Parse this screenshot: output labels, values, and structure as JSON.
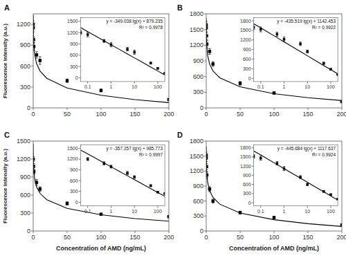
{
  "chart_data": [
    {
      "type": "scatter",
      "title": "A",
      "ylabel": "Fluorescence Intensity (a.u.)",
      "xlim": [
        0,
        200
      ],
      "xticks": [
        0,
        50,
        100,
        150,
        200
      ],
      "ylim": [
        0,
        1350
      ],
      "yticks": [
        0,
        300,
        600,
        900,
        1200
      ],
      "grid": false,
      "annotations": [
        "y = -349.038 lg(x) + 879.235",
        "R² = 0.9978"
      ],
      "inset": {
        "log": "x",
        "xlim": [
          0.05,
          200
        ],
        "xticks": [
          0.1,
          1,
          10,
          100
        ],
        "ylim": [
          -100,
          1600
        ],
        "yticks": [
          0,
          300,
          600,
          900,
          1200,
          1500
        ]
      },
      "series": [
        {
          "type": "line",
          "color": "black",
          "x": [
            0.05,
            0.1,
            0.5,
            1,
            2,
            5,
            10,
            20,
            50,
            100,
            150,
            200
          ],
          "values": [
            1333.3,
            1228.3,
            984.3,
            879.2,
            774.2,
            635.3,
            530.2,
            425.1,
            286.2,
            181.2,
            119.7,
            76.1
          ]
        },
        {
          "type": "scatter",
          "color": "black",
          "marker": "square",
          "x": [
            0.05,
            0.1,
            0.5,
            1,
            5,
            10,
            50,
            100,
            200
          ],
          "values": [
            1200,
            1150,
            980,
            880,
            760,
            680,
            390,
            250,
            120
          ],
          "errors": [
            50,
            60,
            40,
            55,
            45,
            55,
            25,
            20,
            12
          ]
        }
      ]
    },
    {
      "type": "scatter",
      "title": "B",
      "xlim": [
        0,
        200
      ],
      "xticks": [
        0,
        50,
        100,
        150,
        200
      ],
      "ylim": [
        0,
        1800
      ],
      "yticks": [
        0,
        300,
        600,
        900,
        1200,
        1500,
        1800
      ],
      "grid": false,
      "annotations": [
        "y = -435.519 lg(x) + 1142.453",
        "R² = 0.9922"
      ],
      "inset": {
        "log": "x",
        "xlim": [
          0.05,
          200
        ],
        "xticks": [
          0.1,
          1,
          10,
          100
        ],
        "ylim": [
          -100,
          1900
        ],
        "yticks": [
          0,
          300,
          600,
          900,
          1200,
          1500,
          1800
        ]
      },
      "series": [
        {
          "type": "line",
          "color": "black",
          "x": [
            0.05,
            0.1,
            0.5,
            1,
            2,
            5,
            10,
            20,
            50,
            100,
            150,
            200
          ],
          "values": [
            1709.1,
            1578.0,
            1273.6,
            1142.5,
            1011.3,
            838.0,
            706.9,
            575.8,
            402.5,
            271.4,
            194.7,
            140.3
          ]
        },
        {
          "type": "scatter",
          "color": "black",
          "marker": "square",
          "x": [
            0.05,
            0.1,
            0.5,
            1,
            5,
            10,
            50,
            100,
            200
          ],
          "values": [
            1590,
            1530,
            1380,
            1220,
            1080,
            840,
            470,
            285,
            120
          ],
          "errors": [
            65,
            75,
            65,
            75,
            55,
            45,
            35,
            22,
            12
          ]
        }
      ]
    },
    {
      "type": "scatter",
      "title": "C",
      "xlabel": "Concentration of AMD (ng/mL)",
      "ylabel": "Fluorescence Intensity (a.u.)",
      "xlim": [
        0,
        200
      ],
      "xticks": [
        0,
        50,
        100,
        150,
        200
      ],
      "ylim": [
        0,
        1500
      ],
      "yticks": [
        0,
        300,
        600,
        900,
        1200,
        1500
      ],
      "grid": false,
      "annotations": [
        "y = -357.257 lg(x) + 985.773",
        "R² = 0.9997"
      ],
      "inset": {
        "log": "x",
        "xlim": [
          0.05,
          200
        ],
        "xticks": [
          0.1,
          1,
          10,
          100
        ],
        "ylim": [
          -100,
          1600
        ],
        "yticks": [
          0,
          300,
          600,
          900,
          1200,
          1500
        ]
      },
      "series": [
        {
          "type": "line",
          "color": "black",
          "x": [
            0.05,
            0.1,
            0.5,
            1,
            2,
            5,
            10,
            20,
            50,
            100,
            150,
            200
          ],
          "values": [
            1450.6,
            1343.0,
            1093.3,
            985.8,
            878.2,
            736.1,
            628.5,
            521.0,
            378.8,
            271.3,
            208.3,
            163.7
          ]
        },
        {
          "type": "scatter",
          "color": "black",
          "marker": "square",
          "x": [
            0.1,
            0.5,
            1,
            5,
            10,
            50,
            100,
            200
          ],
          "values": [
            1200,
            1080,
            990,
            810,
            700,
            460,
            280,
            240
          ],
          "errors": [
            40,
            45,
            38,
            48,
            38,
            28,
            18,
            14
          ]
        }
      ]
    },
    {
      "type": "scatter",
      "title": "D",
      "xlabel": "Concentration of AMD (ng/mL)",
      "xlim": [
        0,
        200
      ],
      "xticks": [
        0,
        50,
        100,
        150,
        200
      ],
      "ylim": [
        0,
        1800
      ],
      "yticks": [
        0,
        300,
        600,
        900,
        1200,
        1500,
        1800
      ],
      "grid": false,
      "annotations": [
        "y = -445.684 lg(x) + 1117.637",
        "R² = 0.9924"
      ],
      "inset": {
        "log": "x",
        "xlim": [
          0.05,
          200
        ],
        "xticks": [
          0.1,
          1,
          10,
          100
        ],
        "ylim": [
          -100,
          1900
        ],
        "yticks": [
          0,
          300,
          600,
          900,
          1200,
          1500,
          1800
        ]
      },
      "series": [
        {
          "type": "line",
          "color": "black",
          "x": [
            0.05,
            0.1,
            0.5,
            1,
            2,
            5,
            10,
            20,
            50,
            100,
            150,
            200
          ],
          "values": [
            1697.5,
            1563.3,
            1251.8,
            1117.6,
            983.5,
            806.1,
            672.0,
            537.8,
            360.4,
            226.3,
            147.8,
            92.1
          ]
        },
        {
          "type": "scatter",
          "color": "black",
          "marker": "square",
          "x": [
            0.05,
            0.1,
            0.5,
            1,
            5,
            10,
            50,
            100,
            200
          ],
          "values": [
            1520,
            1460,
            1290,
            1120,
            840,
            600,
            370,
            270,
            120
          ],
          "errors": [
            58,
            68,
            58,
            68,
            48,
            38,
            28,
            18,
            12
          ]
        }
      ]
    }
  ]
}
